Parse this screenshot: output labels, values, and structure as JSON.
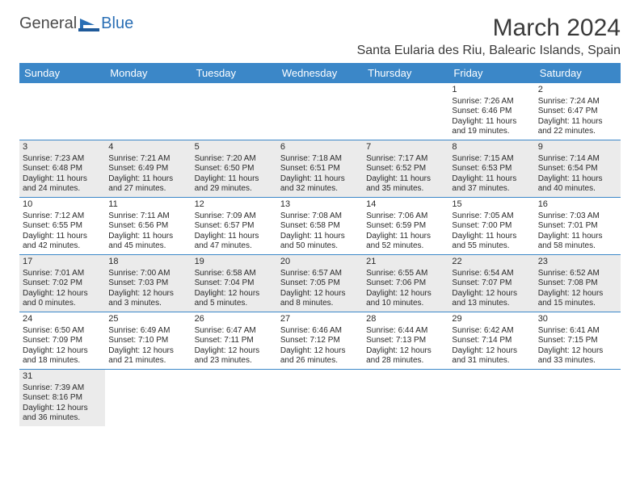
{
  "logo": {
    "text_left": "General",
    "text_right": "Blue"
  },
  "header": {
    "month_title": "March 2024",
    "location": "Santa Eularia des Riu, Balearic Islands, Spain"
  },
  "colors": {
    "header_bg": "#3b87c8",
    "header_text": "#ffffff",
    "alt_row_bg": "#ebebeb",
    "border": "#3b87c8",
    "logo_gray": "#4a4a4a",
    "logo_blue": "#2a6fb5"
  },
  "day_labels": [
    "Sunday",
    "Monday",
    "Tuesday",
    "Wednesday",
    "Thursday",
    "Friday",
    "Saturday"
  ],
  "weeks": [
    {
      "alt": false,
      "cells": [
        {
          "empty": true
        },
        {
          "empty": true
        },
        {
          "empty": true
        },
        {
          "empty": true
        },
        {
          "empty": true
        },
        {
          "day": "1",
          "sunrise": "Sunrise: 7:26 AM",
          "sunset": "Sunset: 6:46 PM",
          "daylight1": "Daylight: 11 hours",
          "daylight2": "and 19 minutes."
        },
        {
          "day": "2",
          "sunrise": "Sunrise: 7:24 AM",
          "sunset": "Sunset: 6:47 PM",
          "daylight1": "Daylight: 11 hours",
          "daylight2": "and 22 minutes."
        }
      ]
    },
    {
      "alt": true,
      "cells": [
        {
          "day": "3",
          "sunrise": "Sunrise: 7:23 AM",
          "sunset": "Sunset: 6:48 PM",
          "daylight1": "Daylight: 11 hours",
          "daylight2": "and 24 minutes."
        },
        {
          "day": "4",
          "sunrise": "Sunrise: 7:21 AM",
          "sunset": "Sunset: 6:49 PM",
          "daylight1": "Daylight: 11 hours",
          "daylight2": "and 27 minutes."
        },
        {
          "day": "5",
          "sunrise": "Sunrise: 7:20 AM",
          "sunset": "Sunset: 6:50 PM",
          "daylight1": "Daylight: 11 hours",
          "daylight2": "and 29 minutes."
        },
        {
          "day": "6",
          "sunrise": "Sunrise: 7:18 AM",
          "sunset": "Sunset: 6:51 PM",
          "daylight1": "Daylight: 11 hours",
          "daylight2": "and 32 minutes."
        },
        {
          "day": "7",
          "sunrise": "Sunrise: 7:17 AM",
          "sunset": "Sunset: 6:52 PM",
          "daylight1": "Daylight: 11 hours",
          "daylight2": "and 35 minutes."
        },
        {
          "day": "8",
          "sunrise": "Sunrise: 7:15 AM",
          "sunset": "Sunset: 6:53 PM",
          "daylight1": "Daylight: 11 hours",
          "daylight2": "and 37 minutes."
        },
        {
          "day": "9",
          "sunrise": "Sunrise: 7:14 AM",
          "sunset": "Sunset: 6:54 PM",
          "daylight1": "Daylight: 11 hours",
          "daylight2": "and 40 minutes."
        }
      ]
    },
    {
      "alt": false,
      "cells": [
        {
          "day": "10",
          "sunrise": "Sunrise: 7:12 AM",
          "sunset": "Sunset: 6:55 PM",
          "daylight1": "Daylight: 11 hours",
          "daylight2": "and 42 minutes."
        },
        {
          "day": "11",
          "sunrise": "Sunrise: 7:11 AM",
          "sunset": "Sunset: 6:56 PM",
          "daylight1": "Daylight: 11 hours",
          "daylight2": "and 45 minutes."
        },
        {
          "day": "12",
          "sunrise": "Sunrise: 7:09 AM",
          "sunset": "Sunset: 6:57 PM",
          "daylight1": "Daylight: 11 hours",
          "daylight2": "and 47 minutes."
        },
        {
          "day": "13",
          "sunrise": "Sunrise: 7:08 AM",
          "sunset": "Sunset: 6:58 PM",
          "daylight1": "Daylight: 11 hours",
          "daylight2": "and 50 minutes."
        },
        {
          "day": "14",
          "sunrise": "Sunrise: 7:06 AM",
          "sunset": "Sunset: 6:59 PM",
          "daylight1": "Daylight: 11 hours",
          "daylight2": "and 52 minutes."
        },
        {
          "day": "15",
          "sunrise": "Sunrise: 7:05 AM",
          "sunset": "Sunset: 7:00 PM",
          "daylight1": "Daylight: 11 hours",
          "daylight2": "and 55 minutes."
        },
        {
          "day": "16",
          "sunrise": "Sunrise: 7:03 AM",
          "sunset": "Sunset: 7:01 PM",
          "daylight1": "Daylight: 11 hours",
          "daylight2": "and 58 minutes."
        }
      ]
    },
    {
      "alt": true,
      "cells": [
        {
          "day": "17",
          "sunrise": "Sunrise: 7:01 AM",
          "sunset": "Sunset: 7:02 PM",
          "daylight1": "Daylight: 12 hours",
          "daylight2": "and 0 minutes."
        },
        {
          "day": "18",
          "sunrise": "Sunrise: 7:00 AM",
          "sunset": "Sunset: 7:03 PM",
          "daylight1": "Daylight: 12 hours",
          "daylight2": "and 3 minutes."
        },
        {
          "day": "19",
          "sunrise": "Sunrise: 6:58 AM",
          "sunset": "Sunset: 7:04 PM",
          "daylight1": "Daylight: 12 hours",
          "daylight2": "and 5 minutes."
        },
        {
          "day": "20",
          "sunrise": "Sunrise: 6:57 AM",
          "sunset": "Sunset: 7:05 PM",
          "daylight1": "Daylight: 12 hours",
          "daylight2": "and 8 minutes."
        },
        {
          "day": "21",
          "sunrise": "Sunrise: 6:55 AM",
          "sunset": "Sunset: 7:06 PM",
          "daylight1": "Daylight: 12 hours",
          "daylight2": "and 10 minutes."
        },
        {
          "day": "22",
          "sunrise": "Sunrise: 6:54 AM",
          "sunset": "Sunset: 7:07 PM",
          "daylight1": "Daylight: 12 hours",
          "daylight2": "and 13 minutes."
        },
        {
          "day": "23",
          "sunrise": "Sunrise: 6:52 AM",
          "sunset": "Sunset: 7:08 PM",
          "daylight1": "Daylight: 12 hours",
          "daylight2": "and 15 minutes."
        }
      ]
    },
    {
      "alt": false,
      "cells": [
        {
          "day": "24",
          "sunrise": "Sunrise: 6:50 AM",
          "sunset": "Sunset: 7:09 PM",
          "daylight1": "Daylight: 12 hours",
          "daylight2": "and 18 minutes."
        },
        {
          "day": "25",
          "sunrise": "Sunrise: 6:49 AM",
          "sunset": "Sunset: 7:10 PM",
          "daylight1": "Daylight: 12 hours",
          "daylight2": "and 21 minutes."
        },
        {
          "day": "26",
          "sunrise": "Sunrise: 6:47 AM",
          "sunset": "Sunset: 7:11 PM",
          "daylight1": "Daylight: 12 hours",
          "daylight2": "and 23 minutes."
        },
        {
          "day": "27",
          "sunrise": "Sunrise: 6:46 AM",
          "sunset": "Sunset: 7:12 PM",
          "daylight1": "Daylight: 12 hours",
          "daylight2": "and 26 minutes."
        },
        {
          "day": "28",
          "sunrise": "Sunrise: 6:44 AM",
          "sunset": "Sunset: 7:13 PM",
          "daylight1": "Daylight: 12 hours",
          "daylight2": "and 28 minutes."
        },
        {
          "day": "29",
          "sunrise": "Sunrise: 6:42 AM",
          "sunset": "Sunset: 7:14 PM",
          "daylight1": "Daylight: 12 hours",
          "daylight2": "and 31 minutes."
        },
        {
          "day": "30",
          "sunrise": "Sunrise: 6:41 AM",
          "sunset": "Sunset: 7:15 PM",
          "daylight1": "Daylight: 12 hours",
          "daylight2": "and 33 minutes."
        }
      ]
    },
    {
      "alt": true,
      "cells": [
        {
          "day": "31",
          "sunrise": "Sunrise: 7:39 AM",
          "sunset": "Sunset: 8:16 PM",
          "daylight1": "Daylight: 12 hours",
          "daylight2": "and 36 minutes."
        },
        {
          "empty": true
        },
        {
          "empty": true
        },
        {
          "empty": true
        },
        {
          "empty": true
        },
        {
          "empty": true
        },
        {
          "empty": true
        }
      ]
    }
  ]
}
